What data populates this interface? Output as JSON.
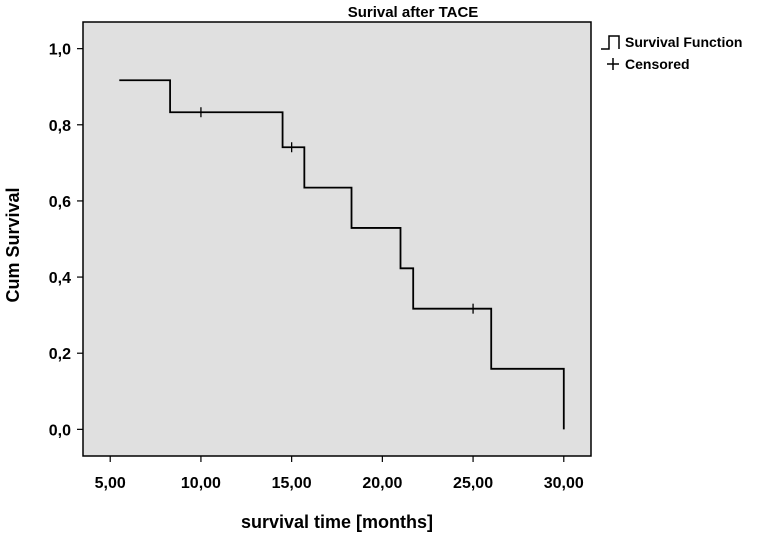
{
  "chart_data": {
    "type": "line",
    "title": "Surival after TACE",
    "xlabel": "survival time [months]",
    "ylabel": "Cum Survival",
    "xlim": [
      3.5,
      31.5
    ],
    "ylim": [
      -0.07,
      1.07
    ],
    "x_ticks": [
      5,
      10,
      15,
      20,
      25,
      30
    ],
    "x_tick_labels": [
      "5,00",
      "10,00",
      "15,00",
      "20,00",
      "25,00",
      "30,00"
    ],
    "y_ticks": [
      0,
      0.2,
      0.4,
      0.6,
      0.8,
      1.0
    ],
    "y_tick_labels": [
      "0,0",
      "0,2",
      "0,4",
      "0,6",
      "0,8",
      "1,0"
    ],
    "grid": false,
    "plot_background": "#e0e0e0",
    "line_color": "#000000",
    "legend": {
      "placement": "top-right, outside plot",
      "entries": [
        {
          "symbol": "step",
          "label": "Survival Function"
        },
        {
          "symbol": "plus",
          "label": "Censored"
        }
      ]
    },
    "series": [
      {
        "name": "Survival Function",
        "x": [
          5.5,
          8.3,
          14.5,
          15.7,
          18.3,
          21.0,
          21.7,
          26.0,
          30.0
        ],
        "y": [
          0.917,
          0.833,
          0.741,
          0.635,
          0.529,
          0.423,
          0.317,
          0.159,
          0.0
        ]
      },
      {
        "name": "Censored",
        "x": [
          10.0,
          15.0,
          25.0
        ],
        "y": [
          0.833,
          0.741,
          0.317
        ]
      }
    ]
  }
}
